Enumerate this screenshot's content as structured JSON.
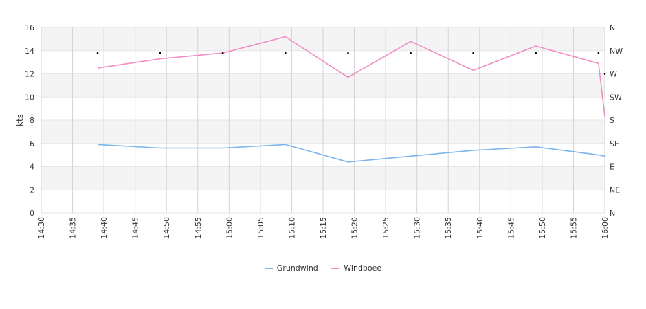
{
  "chart_data": {
    "type": "line",
    "ylabel": "kts",
    "ylim": [
      0,
      16
    ],
    "yticks": [
      0,
      2,
      4,
      6,
      8,
      10,
      12,
      14,
      16
    ],
    "x_range": [
      "14:30",
      "16:00"
    ],
    "x_ticks": [
      "14:30",
      "14:35",
      "14:40",
      "14:45",
      "14:50",
      "14:55",
      "15:00",
      "15:05",
      "15:10",
      "15:15",
      "15:20",
      "15:25",
      "15:30",
      "15:35",
      "15:40",
      "15:45",
      "15:50",
      "15:55",
      "16:00"
    ],
    "direction_ticks": [
      "N",
      "NE",
      "E",
      "SE",
      "S",
      "SW",
      "W",
      "NW",
      "N"
    ],
    "grid": true,
    "legend_position": "bottom",
    "series": [
      {
        "name": "Grundwind",
        "color": "#7cb5ec",
        "x": [
          "14:39",
          "14:49",
          "14:59",
          "15:09",
          "15:19",
          "15:29",
          "15:39",
          "15:49",
          "15:59",
          "16:00"
        ],
        "values": [
          5.9,
          5.6,
          5.6,
          5.9,
          4.4,
          4.9,
          5.4,
          5.7,
          5.0,
          4.9
        ]
      },
      {
        "name": "Windboee",
        "color": "#f08dc4",
        "x": [
          "14:39",
          "14:49",
          "14:59",
          "15:09",
          "15:19",
          "15:29",
          "15:39",
          "15:49",
          "15:59",
          "16:00"
        ],
        "values": [
          12.5,
          13.3,
          13.8,
          15.2,
          11.7,
          14.8,
          12.3,
          14.4,
          12.9,
          8.3
        ]
      }
    ],
    "direction_points": {
      "x": [
        "14:39",
        "14:49",
        "14:59",
        "15:09",
        "15:19",
        "15:29",
        "15:39",
        "15:49",
        "15:59",
        "16:00"
      ],
      "direction_index": [
        6.9,
        6.9,
        6.9,
        6.9,
        6.9,
        6.9,
        6.9,
        6.9,
        6.9,
        6.0
      ]
    }
  }
}
